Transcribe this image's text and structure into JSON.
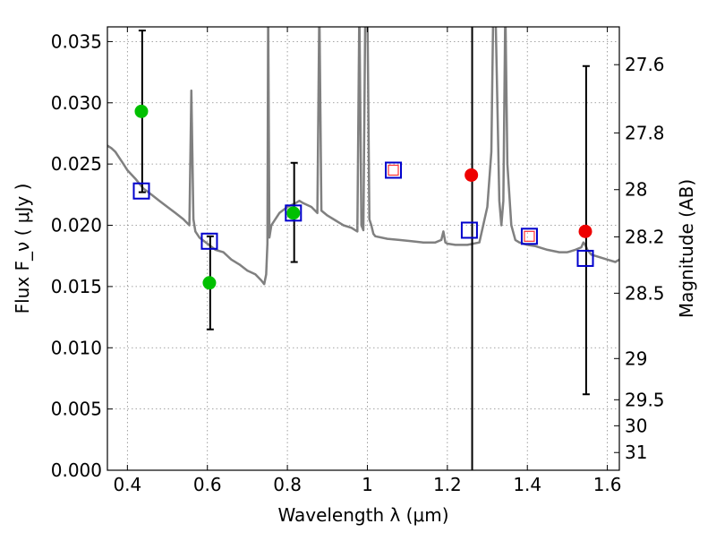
{
  "chart_data": {
    "type": "scatter",
    "xlabel": "Wavelength  λ (μm)",
    "ylabel": "Flux  F_ν  ( μJy )",
    "y2label": "Magnitude (AB)",
    "xlim": [
      0.35,
      1.63
    ],
    "ylim": [
      0.0,
      0.0362
    ],
    "grid": true,
    "x_ticks": [
      0.4,
      0.6,
      0.8,
      1.0,
      1.2,
      1.4,
      1.6
    ],
    "x_tick_labels": [
      "0.4",
      "0.6",
      "0.8",
      "1",
      "1.2",
      "1.4",
      "1.6"
    ],
    "y_ticks": [
      0.0,
      0.005,
      0.01,
      0.015,
      0.02,
      0.025,
      0.03,
      0.035
    ],
    "y_tick_labels": [
      "0.000",
      "0.005",
      "0.010",
      "0.015",
      "0.020",
      "0.025",
      "0.030",
      "0.035"
    ],
    "y2_ticks": [
      27.6,
      27.8,
      28,
      28.2,
      28.5,
      29,
      29.5,
      30,
      31
    ],
    "y2_tick_labels": [
      "27.6",
      "27.8",
      "28",
      "28.2",
      "28.5",
      "29",
      "29.5",
      "30",
      "31"
    ],
    "colors": {
      "model": "#808080",
      "green": "#00c000",
      "red": "#ee0000",
      "square": "#0000cc",
      "square_inner": "#ff3333",
      "errorbar": "#000000",
      "grid": "#888888"
    },
    "model_spectrum": {
      "x": [
        0.35,
        0.36,
        0.37,
        0.38,
        0.39,
        0.4,
        0.42,
        0.44,
        0.46,
        0.48,
        0.5,
        0.52,
        0.54,
        0.555,
        0.56,
        0.565,
        0.57,
        0.58,
        0.6,
        0.62,
        0.64,
        0.66,
        0.68,
        0.7,
        0.72,
        0.735,
        0.742,
        0.747,
        0.75,
        0.752,
        0.755,
        0.76,
        0.78,
        0.8,
        0.82,
        0.83,
        0.84,
        0.86,
        0.875,
        0.88,
        0.885,
        0.9,
        0.92,
        0.94,
        0.96,
        0.975,
        0.98,
        0.985,
        0.99,
        0.995,
        1.0,
        1.005,
        1.01,
        1.015,
        1.02,
        1.05,
        1.08,
        1.11,
        1.14,
        1.17,
        1.185,
        1.19,
        1.195,
        1.2,
        1.22,
        1.25,
        1.28,
        1.3,
        1.31,
        1.315,
        1.32,
        1.33,
        1.335,
        1.34,
        1.345,
        1.35,
        1.36,
        1.37,
        1.38,
        1.4,
        1.42,
        1.45,
        1.48,
        1.5,
        1.52,
        1.535,
        1.54,
        1.545,
        1.55,
        1.56,
        1.58,
        1.6,
        1.62,
        1.63
      ],
      "y": [
        0.0265,
        0.0263,
        0.026,
        0.0255,
        0.025,
        0.0245,
        0.0238,
        0.023,
        0.0225,
        0.022,
        0.0215,
        0.021,
        0.0205,
        0.02,
        0.031,
        0.0205,
        0.0195,
        0.019,
        0.0185,
        0.018,
        0.0178,
        0.0172,
        0.0168,
        0.0163,
        0.016,
        0.0155,
        0.0152,
        0.016,
        0.0185,
        0.038,
        0.019,
        0.02,
        0.021,
        0.0215,
        0.0218,
        0.022,
        0.0218,
        0.0215,
        0.021,
        0.038,
        0.0212,
        0.0208,
        0.0204,
        0.02,
        0.0198,
        0.0195,
        0.038,
        0.02,
        0.0196,
        0.038,
        0.038,
        0.0205,
        0.02,
        0.0193,
        0.0191,
        0.0189,
        0.0188,
        0.0187,
        0.0186,
        0.0186,
        0.0188,
        0.0195,
        0.0186,
        0.0185,
        0.0184,
        0.0184,
        0.0186,
        0.0215,
        0.026,
        0.038,
        0.038,
        0.022,
        0.02,
        0.022,
        0.038,
        0.025,
        0.02,
        0.0188,
        0.0186,
        0.0184,
        0.0183,
        0.018,
        0.0178,
        0.0178,
        0.018,
        0.0182,
        0.0186,
        0.0184,
        0.018,
        0.0176,
        0.0174,
        0.0172,
        0.017,
        0.0172
      ]
    },
    "series": [
      {
        "marker": "circle",
        "color": "green",
        "points": [
          {
            "x": 0.435,
            "y": 0.0293
          },
          {
            "x": 0.605,
            "y": 0.0153
          },
          {
            "x": 0.815,
            "y": 0.021
          }
        ]
      },
      {
        "marker": "circle",
        "color": "red",
        "points": [
          {
            "x": 1.26,
            "y": 0.0241
          },
          {
            "x": 1.545,
            "y": 0.0195
          }
        ]
      },
      {
        "marker": "square",
        "color": "square",
        "points": [
          {
            "x": 0.435,
            "y": 0.0228
          },
          {
            "x": 0.605,
            "y": 0.0187
          },
          {
            "x": 0.815,
            "y": 0.021
          },
          {
            "x": 1.065,
            "y": 0.0245,
            "inner": true
          },
          {
            "x": 1.255,
            "y": 0.0196
          },
          {
            "x": 1.405,
            "y": 0.0191,
            "inner": true
          },
          {
            "x": 1.545,
            "y": 0.0173
          }
        ]
      }
    ],
    "error_bars": [
      {
        "x": 0.437,
        "low": 0.0227,
        "high": 0.0359
      },
      {
        "x": 0.607,
        "low": 0.0115,
        "high": 0.0191
      },
      {
        "x": 0.817,
        "low": 0.017,
        "high": 0.0251
      },
      {
        "x": 1.262,
        "low": 0.0,
        "high": 0.0362,
        "open_ends": true
      },
      {
        "x": 1.547,
        "low": 0.0062,
        "high": 0.033
      }
    ]
  }
}
